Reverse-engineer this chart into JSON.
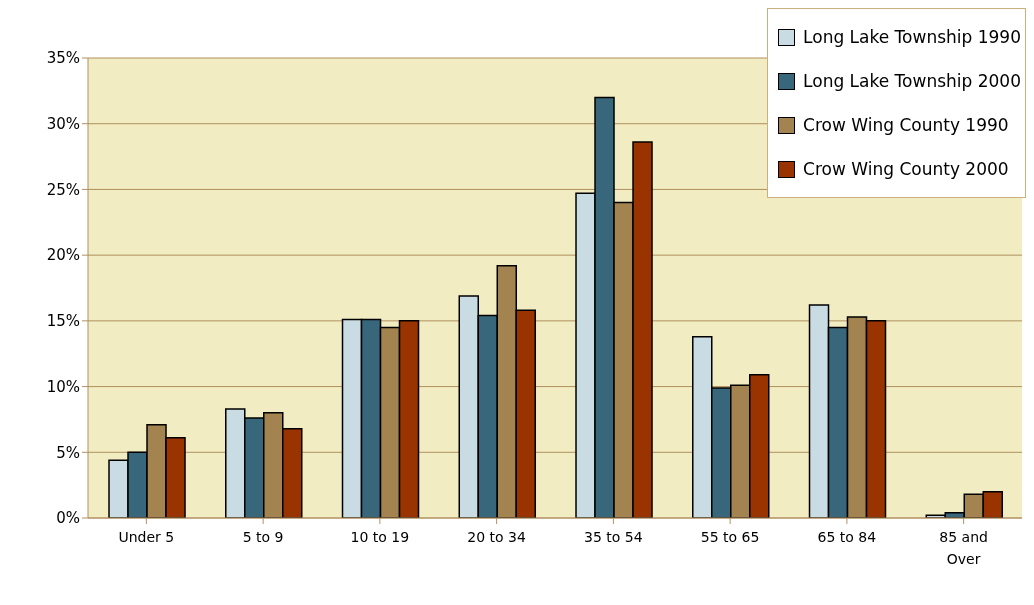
{
  "chart_data": {
    "type": "bar",
    "categories": [
      "Under 5",
      "5 to 9",
      "10 to 19",
      "20 to 34",
      "35 to 54",
      "55 to 65",
      "65 to 84",
      "85 and Over"
    ],
    "series": [
      {
        "name": "Long Lake Township 1990",
        "color": "#c9dbe3",
        "values": [
          4.4,
          8.3,
          15.1,
          16.9,
          24.7,
          13.8,
          16.2,
          0.2
        ]
      },
      {
        "name": "Long Lake Township 2000",
        "color": "#38667a",
        "values": [
          5.0,
          7.6,
          15.1,
          15.4,
          32.0,
          9.9,
          14.5,
          0.4
        ]
      },
      {
        "name": "Crow Wing County 1990",
        "color": "#a3834f",
        "values": [
          7.1,
          8.0,
          14.5,
          19.2,
          24.0,
          10.1,
          15.3,
          1.8
        ]
      },
      {
        "name": "Crow Wing County 2000",
        "color": "#993300",
        "values": [
          6.1,
          6.8,
          15.0,
          15.8,
          28.6,
          10.9,
          15.0,
          2.0
        ]
      }
    ],
    "ylim": [
      0,
      35
    ],
    "yticks": [
      {
        "value": 0,
        "label": "0%"
      },
      {
        "value": 5,
        "label": "5%"
      },
      {
        "value": 10,
        "label": "10%"
      },
      {
        "value": 15,
        "label": "15%"
      },
      {
        "value": 20,
        "label": "20%"
      },
      {
        "value": 25,
        "label": "25%"
      },
      {
        "value": 30,
        "label": "30%"
      },
      {
        "value": 35,
        "label": "35%"
      }
    ],
    "grid": "y",
    "legend": "top right"
  }
}
